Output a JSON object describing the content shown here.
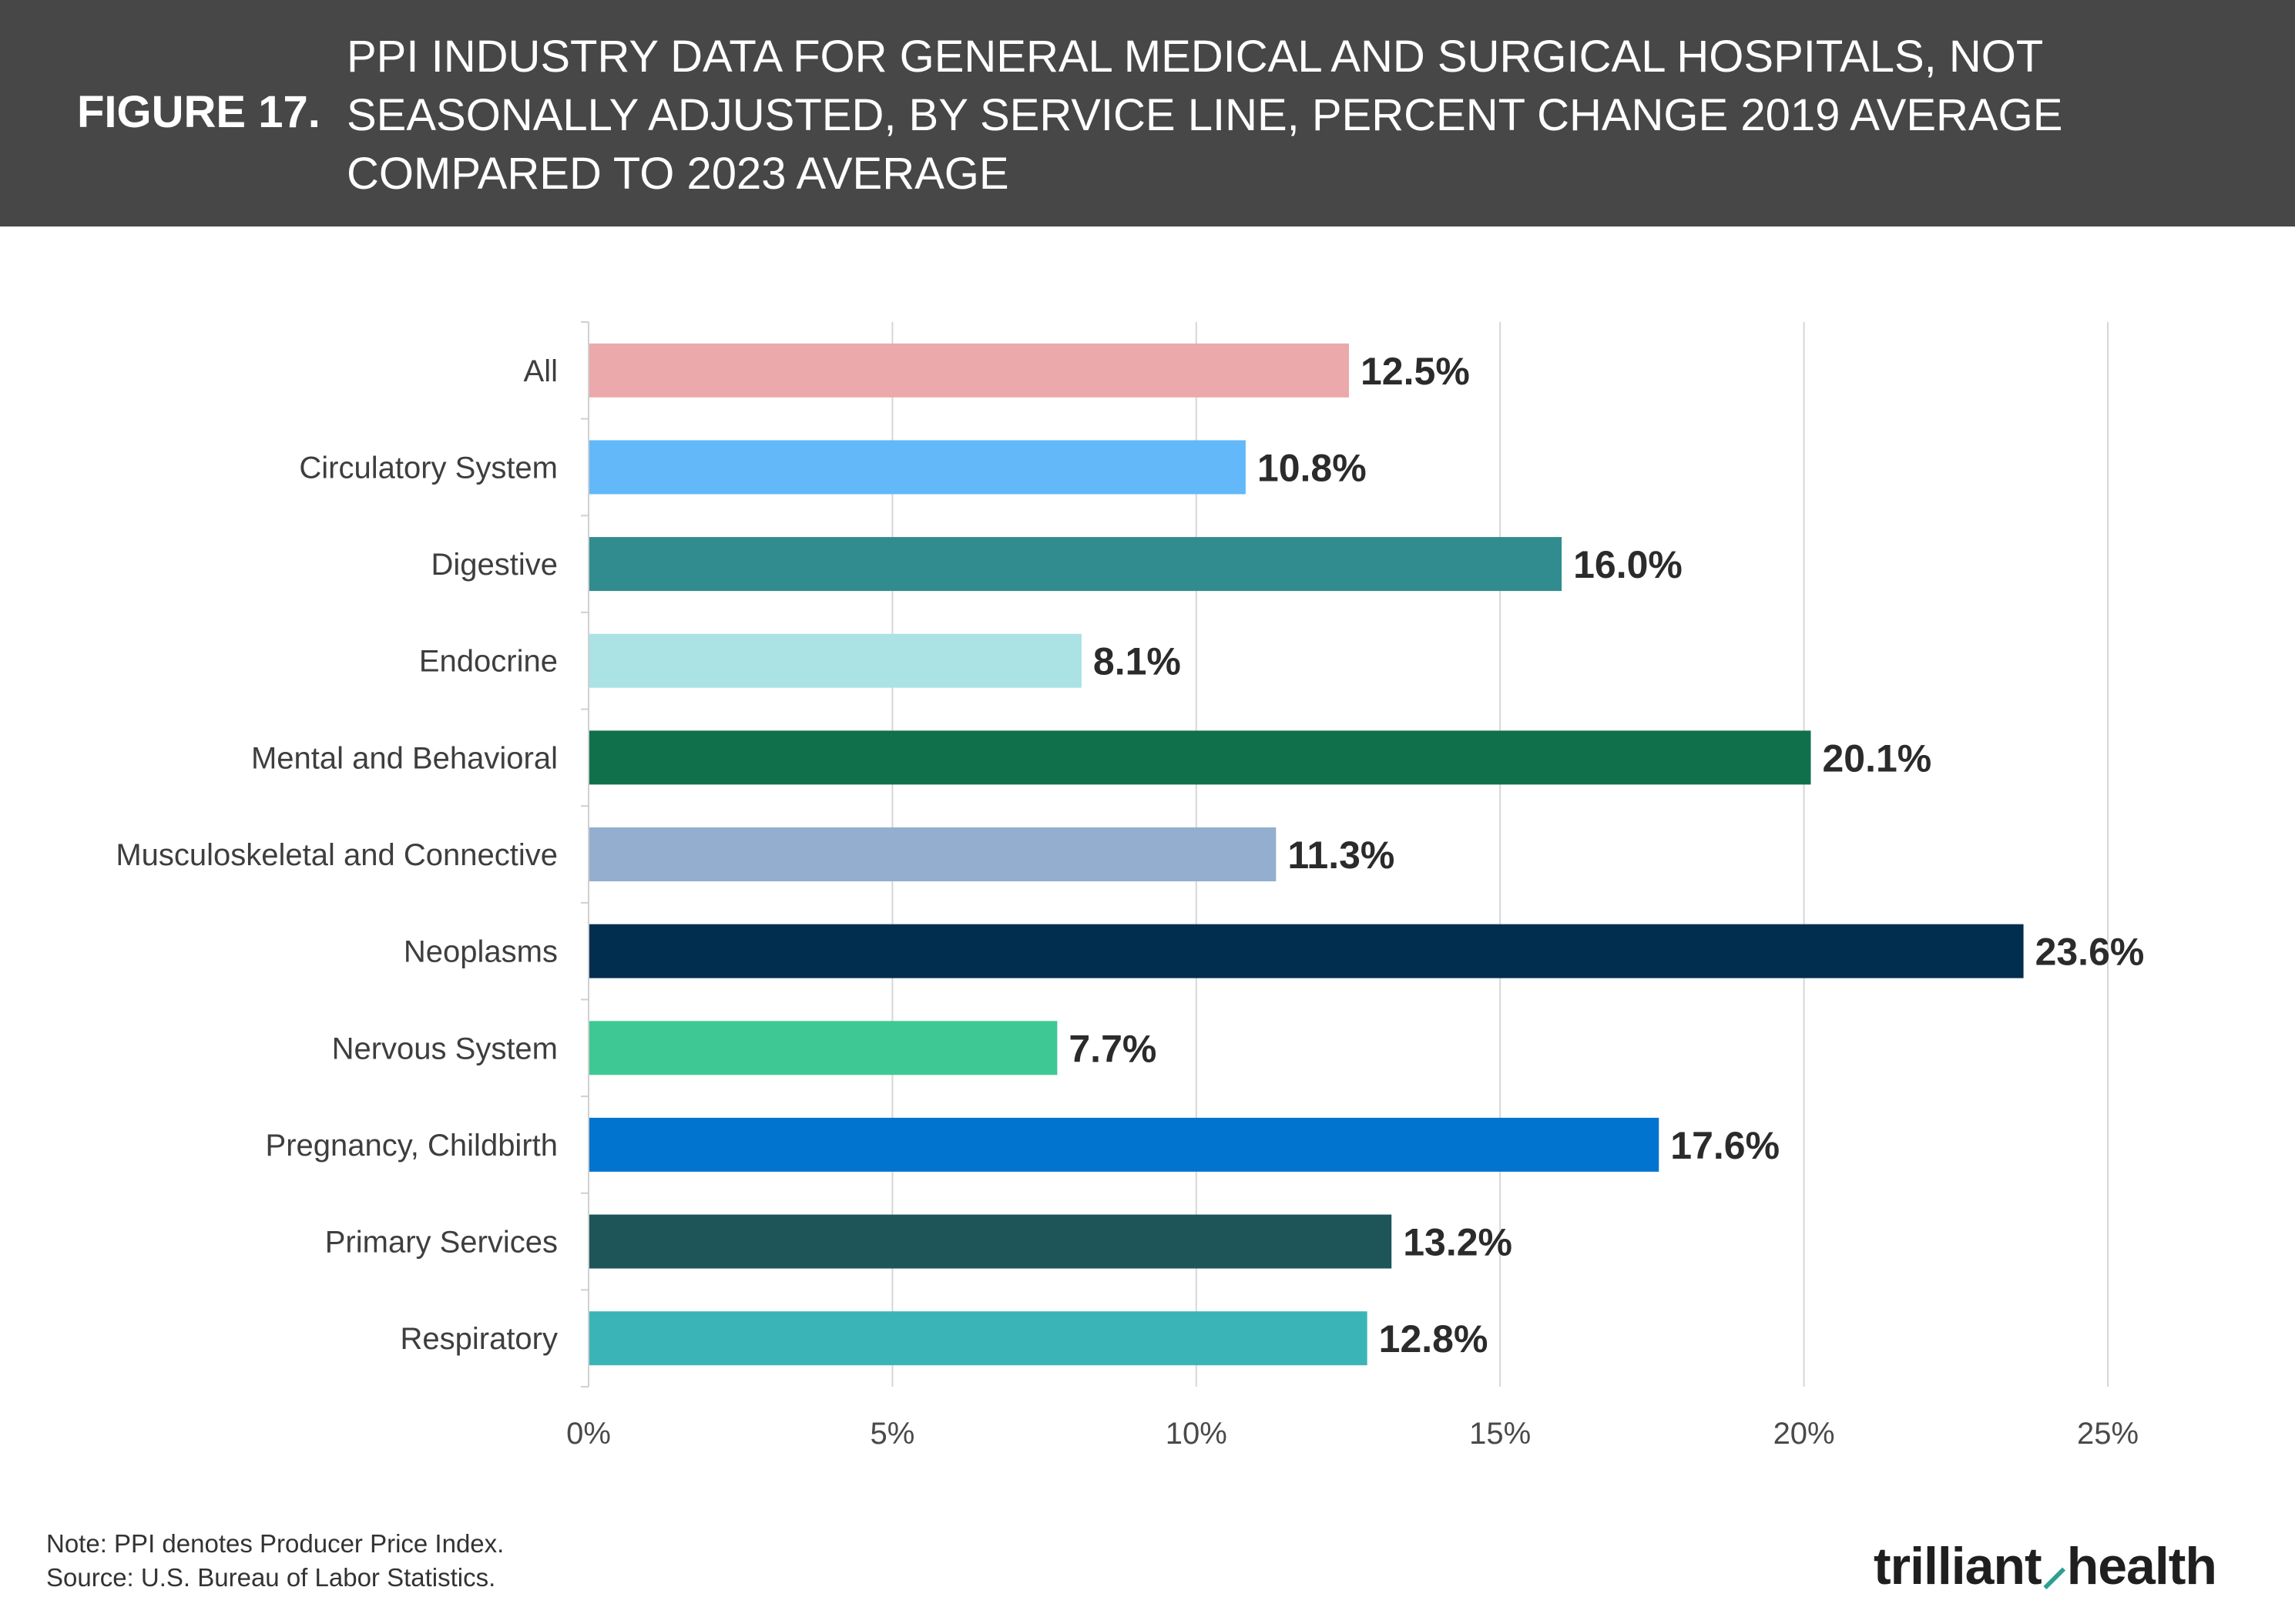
{
  "header": {
    "figure_label": "FIGURE 17.",
    "title": "PPI INDUSTRY DATA FOR GENERAL MEDICAL AND SURGICAL HOSPITALS, NOT SEASONALLY ADJUSTED, BY SERVICE LINE, PERCENT CHANGE 2019 AVERAGE COMPARED TO 2023 AVERAGE"
  },
  "chart_data": {
    "type": "bar",
    "orientation": "horizontal",
    "categories": [
      "All",
      "Circulatory System",
      "Digestive",
      "Endocrine",
      "Mental and Behavioral",
      "Musculoskeletal and Connective",
      "Neoplasms",
      "Nervous System",
      "Pregnancy, Childbirth",
      "Primary Services",
      "Respiratory"
    ],
    "values": [
      12.5,
      10.8,
      16.0,
      8.1,
      20.1,
      11.3,
      23.6,
      7.7,
      17.6,
      13.2,
      12.8
    ],
    "value_labels": [
      "12.5%",
      "10.8%",
      "16.0%",
      "8.1%",
      "20.1%",
      "11.3%",
      "23.6%",
      "7.7%",
      "17.6%",
      "13.2%",
      "12.8%"
    ],
    "colors": [
      "#eba9ab",
      "#62b8f8",
      "#318c8f",
      "#abe2e4",
      "#10704c",
      "#93aecf",
      "#012d4f",
      "#3ec994",
      "#0174d0",
      "#1d5559",
      "#3bb4b8"
    ],
    "x_ticks": [
      0,
      5,
      10,
      15,
      20,
      25
    ],
    "x_tick_labels": [
      "0%",
      "5%",
      "10%",
      "15%",
      "20%",
      "25%"
    ],
    "xlim": [
      0,
      25
    ],
    "grid": true,
    "legend": "none"
  },
  "notes": {
    "note": "Note: PPI denotes Producer Price Index.",
    "source": "Source: U.S. Bureau of Labor Statistics."
  },
  "logo": {
    "part1": "trilliant",
    "part2": "health"
  }
}
